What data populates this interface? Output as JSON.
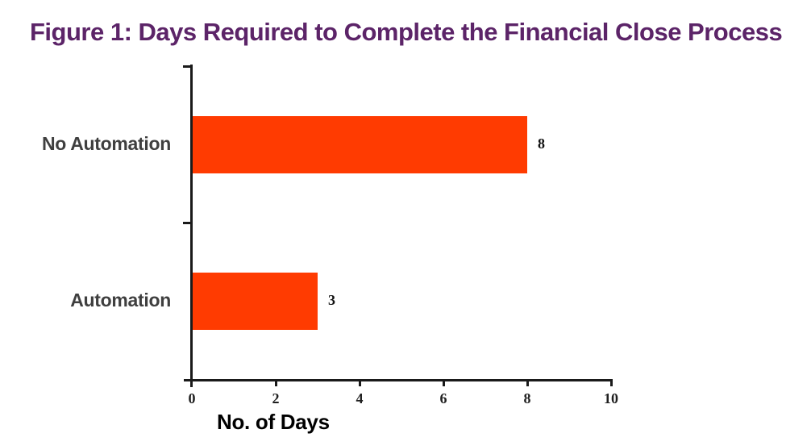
{
  "chart_data": {
    "type": "bar",
    "orientation": "horizontal",
    "title": "Figure 1: Days Required to Complete the Financial Close Process",
    "categories": [
      "No Automation",
      "Automation"
    ],
    "values": [
      8,
      3
    ],
    "data_labels": [
      "8",
      "3"
    ],
    "xlabel": "No. of Days",
    "ylabel": "",
    "x_ticks": [
      0,
      2,
      4,
      6,
      8,
      10
    ],
    "xlim": [
      0,
      10
    ],
    "grid": false,
    "legend": null,
    "colors": {
      "bar": "#ff3b01",
      "title": "#5c2468",
      "category_label": "#3f3f3f",
      "axis": "#1a1a1a",
      "tick_label": "#1f1f1f",
      "background": "#ffffff"
    }
  }
}
